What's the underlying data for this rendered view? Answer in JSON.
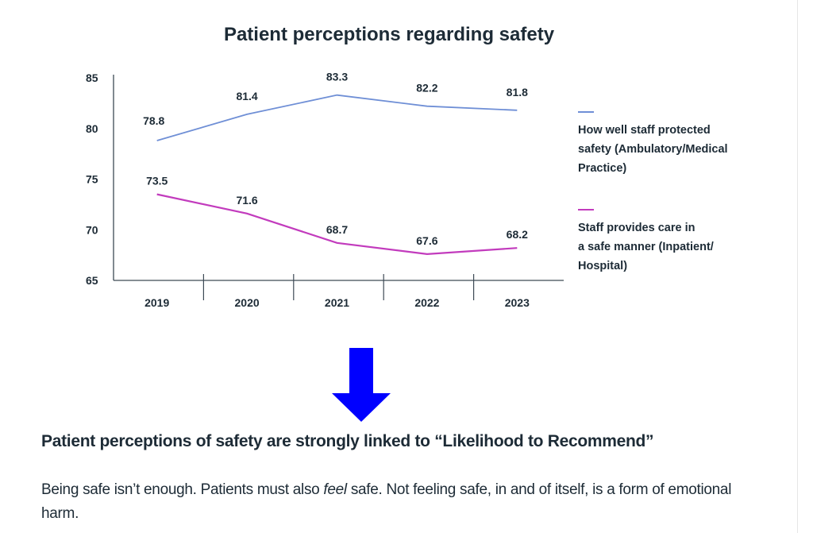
{
  "chart_data": {
    "type": "line",
    "title": "Patient perceptions regarding safety",
    "categories": [
      "2019",
      "2020",
      "2021",
      "2022",
      "2023"
    ],
    "ylim": [
      65,
      85
    ],
    "yticks": [
      "65",
      "70",
      "75",
      "80",
      "85"
    ],
    "grid": false,
    "legend_position": "right",
    "series": [
      {
        "name": "How well staff protected safety (Ambulatory/Medical Practice)",
        "legend_lines": [
          "How well staff protected",
          "safety (Ambulatory/Medical",
          "Practice)"
        ],
        "values": [
          78.8,
          81.4,
          83.3,
          82.2,
          81.8
        ],
        "labels": [
          "78.8",
          "81.4",
          "83.3",
          "82.2",
          "81.8"
        ],
        "color": "#6f8fd6"
      },
      {
        "name": "Staff provides care in a safe manner (Inpatient/Hospital)",
        "legend_lines": [
          "Staff provides care in",
          "a safe manner (Inpatient/",
          "Hospital)"
        ],
        "values": [
          73.5,
          71.6,
          68.7,
          67.6,
          68.2
        ],
        "labels": [
          "73.5",
          "71.6",
          "68.7",
          "67.6",
          "68.2"
        ],
        "color": "#c23bbd"
      }
    ]
  },
  "arrow": {
    "icon": "down-arrow-icon",
    "color": "#0000ff"
  },
  "heading": "Patient perceptions of safety are strongly linked to “Likelihood to Recommend”",
  "paragraph": {
    "before": "Being safe isn’t enough. Patients must also ",
    "emphasis": "feel",
    "after": " safe. Not feeling safe, in and of itself, is a form of emotional harm."
  }
}
